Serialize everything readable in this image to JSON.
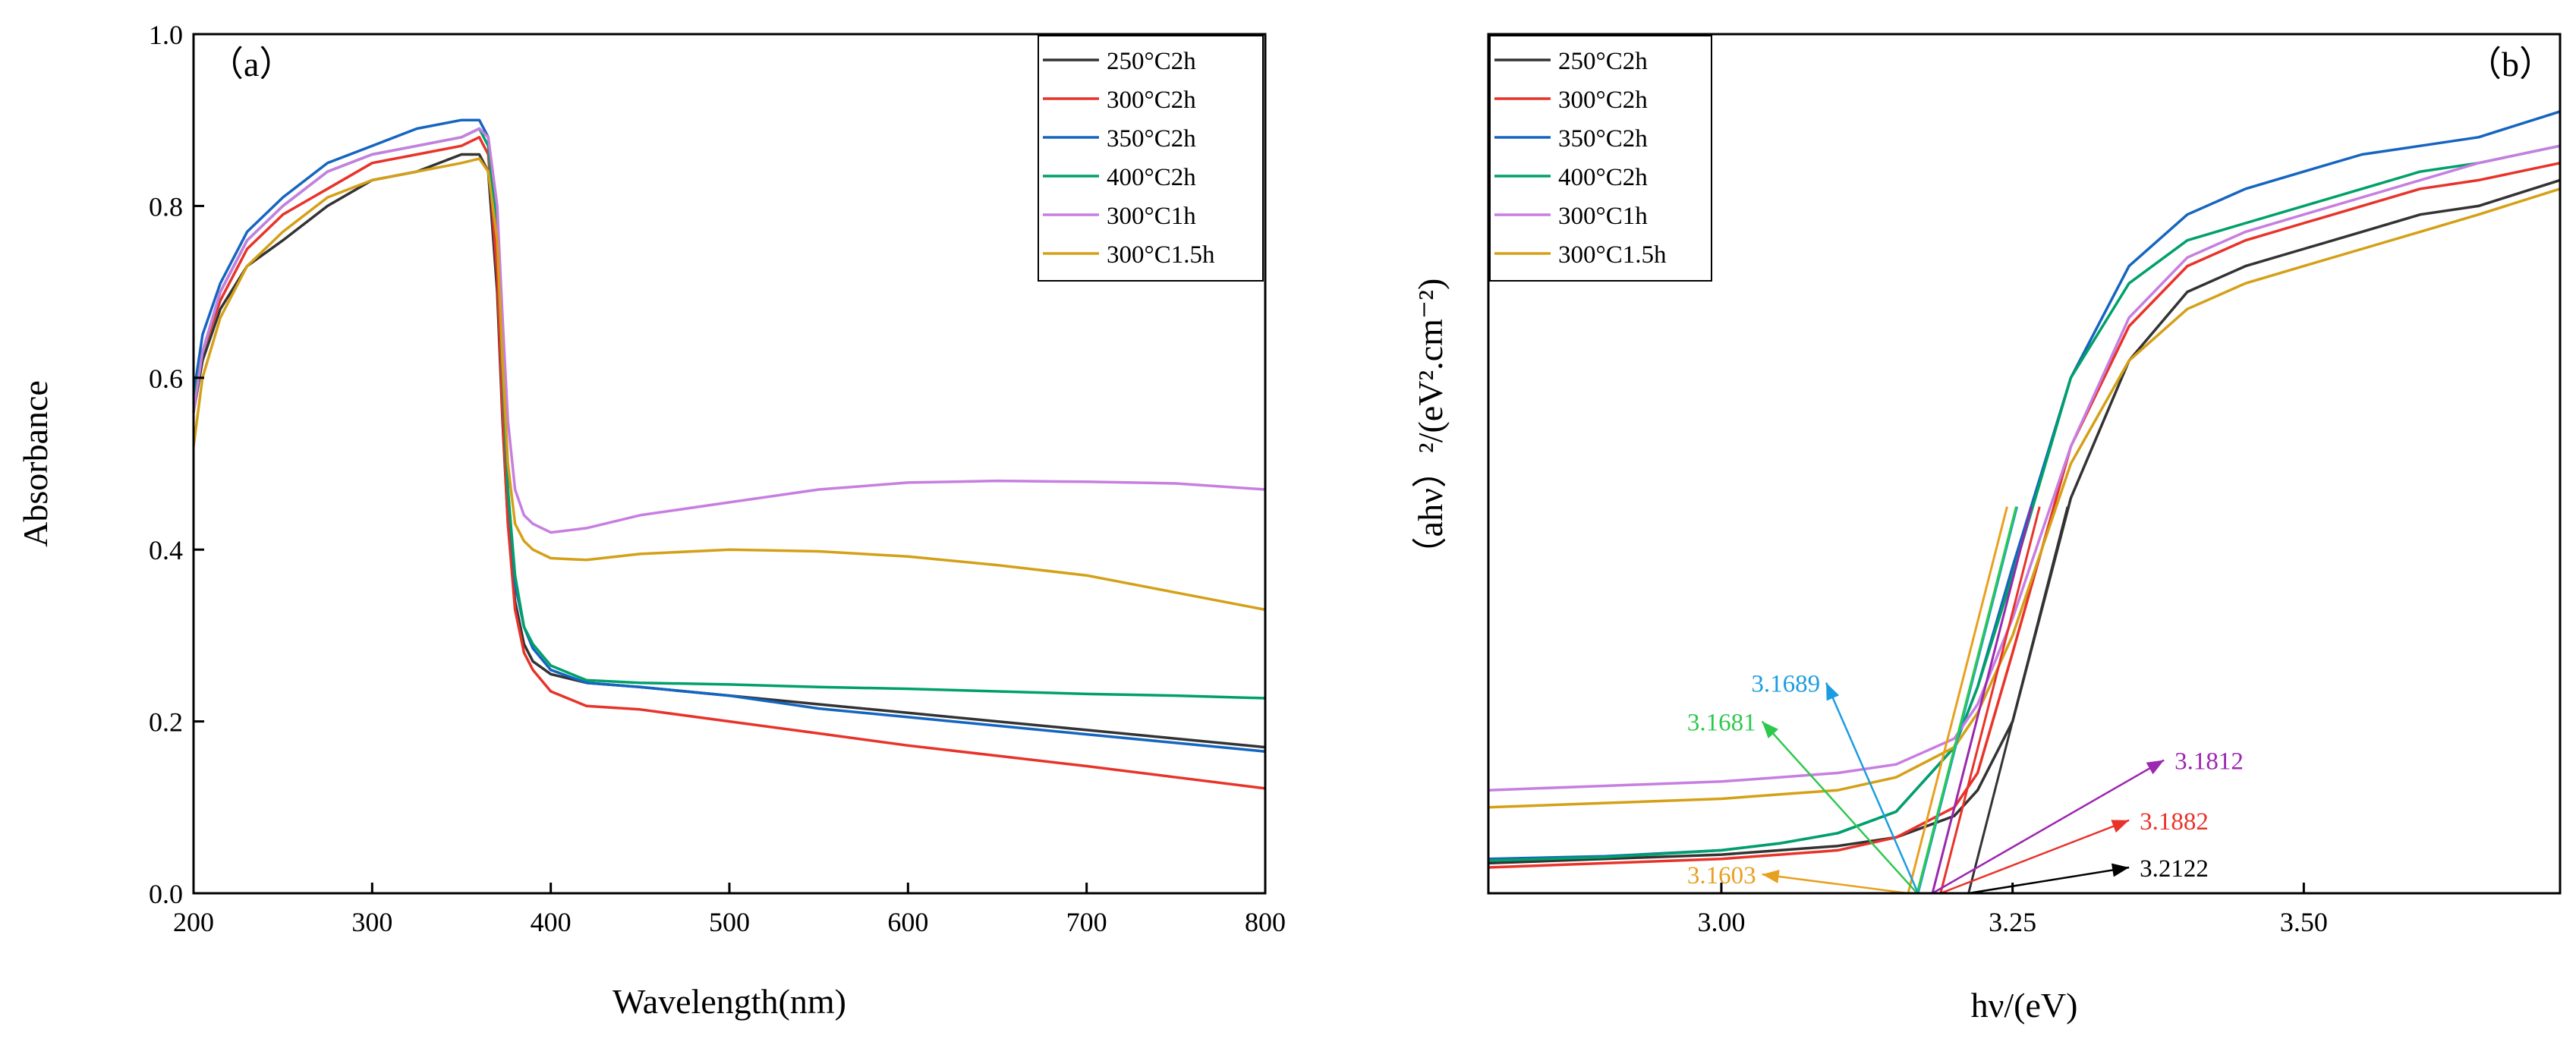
{
  "chart_data": [
    {
      "type": "line",
      "panel_label": "（a）",
      "xlabel": "Wavelength(nm)",
      "ylabel": "Absorbance",
      "xlim": [
        200,
        800
      ],
      "ylim": [
        0,
        1
      ],
      "x_ticks": [
        "200",
        "300",
        "400",
        "500",
        "600",
        "700",
        "800"
      ],
      "y_ticks": [
        "0.0",
        "0.2",
        "0.4",
        "0.6",
        "0.8",
        "1.0"
      ],
      "legend_position": "top-right",
      "grid": false,
      "series": [
        {
          "name": "250°C2h",
          "color": "#333333",
          "x": [
            200,
            205,
            215,
            230,
            250,
            275,
            300,
            325,
            350,
            360,
            365,
            370,
            373,
            376,
            380,
            385,
            390,
            400,
            420,
            450,
            500,
            550,
            600,
            650,
            700,
            750,
            800
          ],
          "y": [
            0.56,
            0.62,
            0.68,
            0.73,
            0.76,
            0.8,
            0.83,
            0.84,
            0.86,
            0.86,
            0.84,
            0.7,
            0.55,
            0.43,
            0.34,
            0.29,
            0.27,
            0.255,
            0.245,
            0.24,
            0.23,
            0.22,
            0.21,
            0.2,
            0.19,
            0.18,
            0.17
          ]
        },
        {
          "name": "300°C2h",
          "color": "#e8332a",
          "x": [
            200,
            205,
            215,
            230,
            250,
            275,
            300,
            325,
            350,
            360,
            365,
            370,
            373,
            376,
            380,
            385,
            390,
            400,
            420,
            450,
            500,
            550,
            600,
            650,
            700,
            750,
            800
          ],
          "y": [
            0.57,
            0.63,
            0.69,
            0.75,
            0.79,
            0.82,
            0.85,
            0.86,
            0.87,
            0.88,
            0.86,
            0.72,
            0.56,
            0.43,
            0.33,
            0.28,
            0.26,
            0.235,
            0.218,
            0.214,
            0.2,
            0.186,
            0.172,
            0.16,
            0.148,
            0.135,
            0.122
          ]
        },
        {
          "name": "350°C2h",
          "color": "#1565c0",
          "x": [
            200,
            205,
            215,
            230,
            250,
            275,
            300,
            325,
            350,
            360,
            365,
            370,
            373,
            376,
            380,
            385,
            390,
            400,
            420,
            450,
            500,
            550,
            600,
            650,
            700,
            750,
            800
          ],
          "y": [
            0.58,
            0.65,
            0.71,
            0.77,
            0.81,
            0.85,
            0.87,
            0.89,
            0.9,
            0.9,
            0.88,
            0.78,
            0.62,
            0.47,
            0.36,
            0.31,
            0.285,
            0.26,
            0.245,
            0.24,
            0.23,
            0.215,
            0.205,
            0.195,
            0.185,
            0.175,
            0.165
          ]
        },
        {
          "name": "400°C2h",
          "color": "#00a06a",
          "x": [
            200,
            205,
            215,
            230,
            250,
            275,
            300,
            325,
            350,
            360,
            365,
            370,
            373,
            376,
            380,
            385,
            390,
            400,
            420,
            450,
            500,
            550,
            600,
            650,
            700,
            750,
            800
          ],
          "y": [
            0.57,
            0.63,
            0.7,
            0.76,
            0.8,
            0.84,
            0.86,
            0.87,
            0.88,
            0.89,
            0.87,
            0.77,
            0.61,
            0.47,
            0.37,
            0.31,
            0.29,
            0.265,
            0.248,
            0.245,
            0.243,
            0.24,
            0.238,
            0.235,
            0.232,
            0.23,
            0.227
          ]
        },
        {
          "name": "300°C1h",
          "color": "#c77ee0",
          "x": [
            200,
            205,
            215,
            230,
            250,
            275,
            300,
            325,
            350,
            360,
            365,
            370,
            373,
            376,
            380,
            385,
            390,
            400,
            420,
            450,
            500,
            550,
            600,
            650,
            700,
            750,
            800
          ],
          "y": [
            0.56,
            0.63,
            0.7,
            0.76,
            0.8,
            0.84,
            0.86,
            0.87,
            0.88,
            0.89,
            0.88,
            0.8,
            0.67,
            0.55,
            0.47,
            0.44,
            0.43,
            0.42,
            0.425,
            0.44,
            0.455,
            0.47,
            0.478,
            0.48,
            0.479,
            0.477,
            0.47
          ]
        },
        {
          "name": "300°C1.5h",
          "color": "#d4a017",
          "x": [
            200,
            205,
            215,
            230,
            250,
            275,
            300,
            325,
            350,
            360,
            365,
            370,
            373,
            376,
            380,
            385,
            390,
            400,
            420,
            450,
            500,
            550,
            600,
            650,
            700,
            750,
            800
          ],
          "y": [
            0.52,
            0.6,
            0.67,
            0.73,
            0.77,
            0.81,
            0.83,
            0.84,
            0.85,
            0.855,
            0.84,
            0.76,
            0.62,
            0.5,
            0.43,
            0.41,
            0.4,
            0.39,
            0.388,
            0.395,
            0.4,
            0.398,
            0.392,
            0.382,
            0.37,
            0.35,
            0.33
          ]
        }
      ]
    },
    {
      "type": "line",
      "panel_label": "（b）",
      "xlabel": "hν/(eV)",
      "ylabel": "（ahν）²/(eV².cm⁻²)",
      "xlim": [
        2.8,
        3.72
      ],
      "ylim": [
        0,
        1
      ],
      "y_tick_labels": false,
      "x_ticks": [
        "3.00",
        "3.25",
        "3.50"
      ],
      "legend_position": "top-left",
      "grid": false,
      "series": [
        {
          "name": "250°C2h",
          "color": "#333333",
          "x": [
            2.8,
            2.9,
            3.0,
            3.05,
            3.1,
            3.15,
            3.2,
            3.22,
            3.25,
            3.3,
            3.35,
            3.4,
            3.45,
            3.5,
            3.55,
            3.6,
            3.65,
            3.72
          ],
          "y": [
            0.035,
            0.04,
            0.045,
            0.05,
            0.055,
            0.065,
            0.09,
            0.12,
            0.2,
            0.46,
            0.62,
            0.7,
            0.73,
            0.75,
            0.77,
            0.79,
            0.8,
            0.83
          ]
        },
        {
          "name": "300°C2h",
          "color": "#e8332a",
          "x": [
            2.8,
            2.9,
            3.0,
            3.05,
            3.1,
            3.15,
            3.2,
            3.22,
            3.25,
            3.3,
            3.35,
            3.4,
            3.45,
            3.5,
            3.55,
            3.6,
            3.65,
            3.72
          ],
          "y": [
            0.03,
            0.035,
            0.04,
            0.045,
            0.05,
            0.065,
            0.1,
            0.14,
            0.28,
            0.52,
            0.66,
            0.73,
            0.76,
            0.78,
            0.8,
            0.82,
            0.83,
            0.85
          ]
        },
        {
          "name": "350°C2h",
          "color": "#1565c0",
          "x": [
            2.8,
            2.9,
            3.0,
            3.05,
            3.1,
            3.15,
            3.2,
            3.22,
            3.25,
            3.3,
            3.35,
            3.4,
            3.45,
            3.5,
            3.55,
            3.6,
            3.65,
            3.72
          ],
          "y": [
            0.04,
            0.043,
            0.05,
            0.058,
            0.07,
            0.095,
            0.17,
            0.24,
            0.38,
            0.6,
            0.73,
            0.79,
            0.82,
            0.84,
            0.86,
            0.87,
            0.88,
            0.91
          ]
        },
        {
          "name": "400°C2h",
          "color": "#00a06a",
          "x": [
            2.8,
            2.9,
            3.0,
            3.05,
            3.1,
            3.15,
            3.2,
            3.22,
            3.25,
            3.3,
            3.35,
            3.4,
            3.45,
            3.5,
            3.55,
            3.6,
            3.65,
            3.72
          ],
          "y": [
            0.038,
            0.042,
            0.05,
            0.058,
            0.07,
            0.095,
            0.17,
            0.24,
            0.37,
            0.6,
            0.71,
            0.76,
            0.78,
            0.8,
            0.82,
            0.84,
            0.85,
            0.87
          ]
        },
        {
          "name": "300°C1h",
          "color": "#c77ee0",
          "x": [
            2.8,
            2.9,
            3.0,
            3.05,
            3.1,
            3.15,
            3.2,
            3.22,
            3.25,
            3.3,
            3.35,
            3.4,
            3.45,
            3.5,
            3.55,
            3.6,
            3.65,
            3.72
          ],
          "y": [
            0.12,
            0.125,
            0.13,
            0.135,
            0.14,
            0.15,
            0.18,
            0.22,
            0.32,
            0.52,
            0.67,
            0.74,
            0.77,
            0.79,
            0.81,
            0.83,
            0.85,
            0.87
          ]
        },
        {
          "name": "300°C1.5h",
          "color": "#d4a017",
          "x": [
            2.8,
            2.9,
            3.0,
            3.05,
            3.1,
            3.15,
            3.2,
            3.22,
            3.25,
            3.3,
            3.35,
            3.4,
            3.45,
            3.5,
            3.55,
            3.6,
            3.65,
            3.72
          ],
          "y": [
            0.1,
            0.105,
            0.11,
            0.115,
            0.12,
            0.135,
            0.17,
            0.21,
            0.3,
            0.5,
            0.62,
            0.68,
            0.71,
            0.73,
            0.75,
            0.77,
            0.79,
            0.82
          ]
        }
      ],
      "tangent_lines": [
        {
          "color": "#333333",
          "x_intercept": 3.2122
        },
        {
          "color": "#e8332a",
          "x_intercept": 3.1882
        },
        {
          "color": "#9c27b0",
          "x_intercept": 3.1812
        },
        {
          "color": "#1a9de0",
          "x_intercept": 3.1689
        },
        {
          "color": "#2ec84e",
          "x_intercept": 3.1681
        },
        {
          "color": "#e8a020",
          "x_intercept": 3.1603
        }
      ],
      "annotations": [
        {
          "text": "3.2122",
          "color": "#000000",
          "x": 3.35,
          "y": 0.03
        },
        {
          "text": "3.1882",
          "color": "#e8332a",
          "x": 3.35,
          "y": 0.085
        },
        {
          "text": "3.1812",
          "color": "#9c27b0",
          "x": 3.38,
          "y": 0.155
        },
        {
          "text": "3.1689",
          "color": "#1a9de0",
          "x": 3.09,
          "y": 0.245
        },
        {
          "text": "3.1681",
          "color": "#2ec84e",
          "x": 3.035,
          "y": 0.2
        },
        {
          "text": "3.1603",
          "color": "#e8a020",
          "x": 3.035,
          "y": 0.022
        }
      ]
    }
  ]
}
